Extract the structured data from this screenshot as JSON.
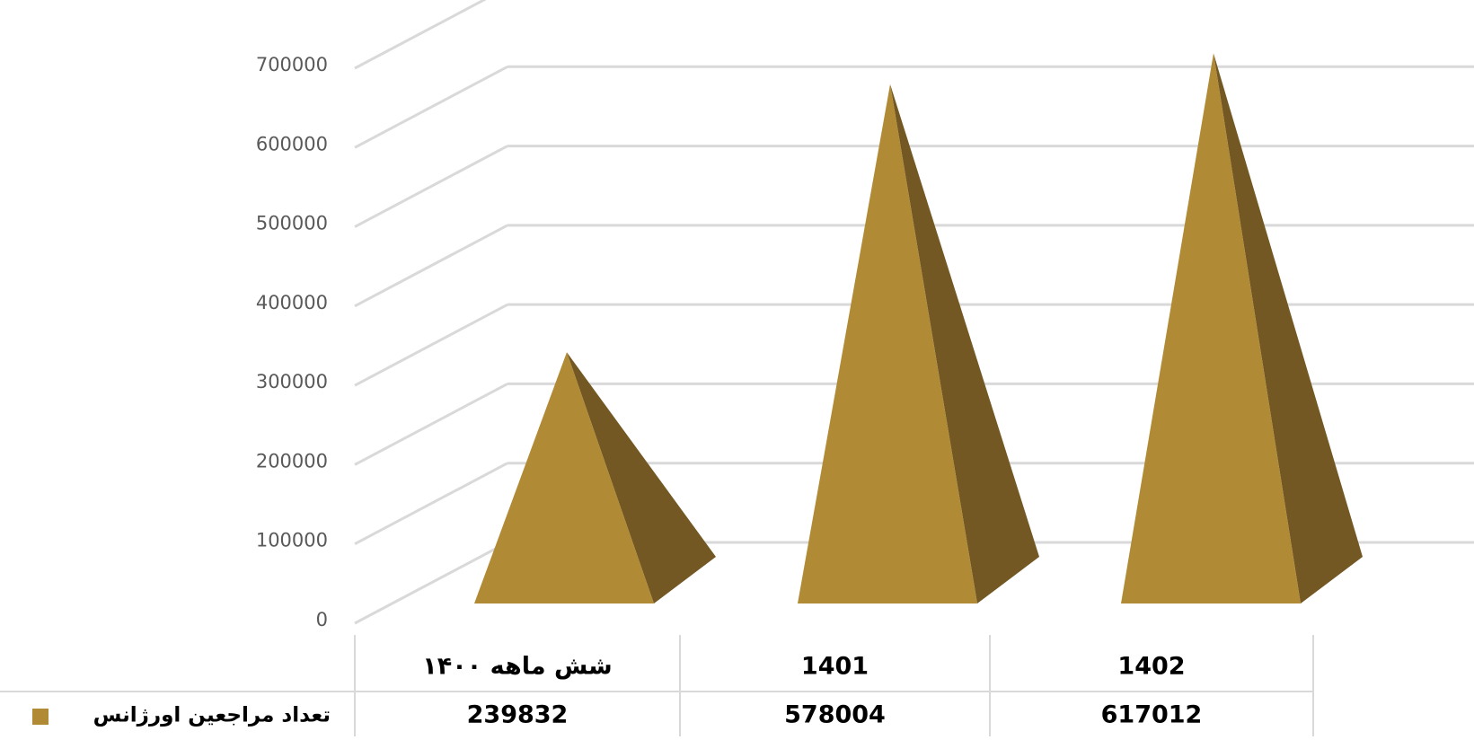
{
  "chart_data": {
    "type": "bar",
    "bar_shape": "3d-pyramid",
    "title": "",
    "categories": [
      "شش ماهه ۱۴۰۰",
      "1401",
      "1402"
    ],
    "series": [
      {
        "name": "تعداد مراجعین اورژانس",
        "values": [
          239832,
          578004,
          617012
        ],
        "color": "#B08A34"
      }
    ],
    "ylim": [
      0,
      700000
    ],
    "y_ticks": [
      0,
      100000,
      200000,
      300000,
      400000,
      500000,
      600000,
      700000
    ],
    "grid": true,
    "legend_placement": "left of data table",
    "data_table": true
  },
  "colors": {
    "pyramid_front": "#B08A34",
    "pyramid_side": "#735824",
    "grid": "#d9d9d9",
    "tick_text": "#595959",
    "table_text": "#000000"
  }
}
